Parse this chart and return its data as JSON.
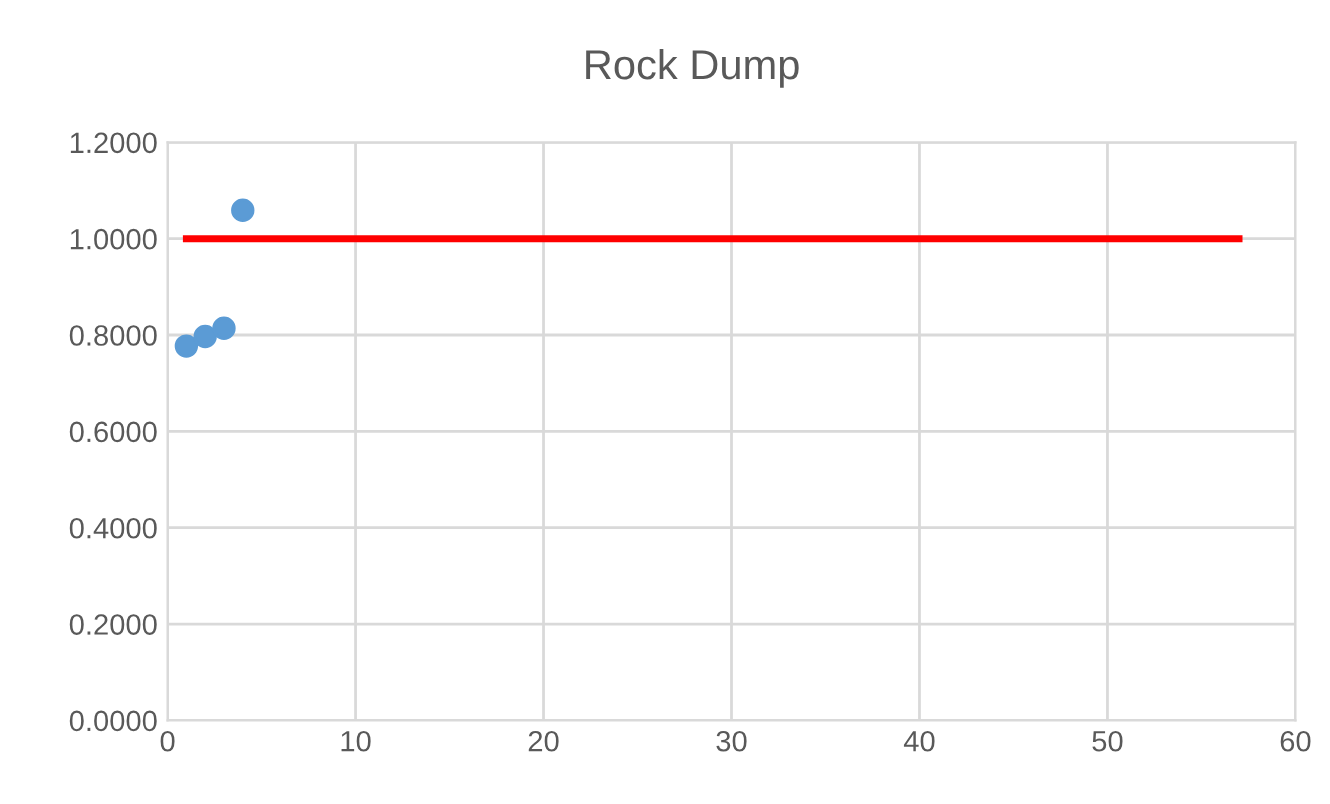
{
  "chart_data": {
    "type": "scatter",
    "title": "Rock Dump",
    "series": [
      {
        "color": "#5b9bd5",
        "marker": "circle",
        "x": [
          1,
          2,
          3,
          4
        ],
        "values": [
          0.777,
          0.797,
          0.814,
          1.059
        ]
      },
      {
        "type": "line",
        "color": "#ff0000",
        "marker": "none",
        "x": [
          1,
          57
        ],
        "values": [
          1.0,
          1.0
        ]
      }
    ],
    "xlim": [
      0,
      60
    ],
    "xticks": [
      0,
      10,
      20,
      30,
      40,
      50,
      60
    ],
    "ylim": [
      0,
      1.2
    ],
    "yticks": [
      {
        "value": 0,
        "label": "0.0000"
      },
      {
        "value": 0.2,
        "label": "0.2000"
      },
      {
        "value": 0.4,
        "label": "0.4000"
      },
      {
        "value": 0.6,
        "label": "0.6000"
      },
      {
        "value": 0.8,
        "label": "0.8000"
      },
      {
        "value": 1.0,
        "label": "1.0000"
      },
      {
        "value": 1.2,
        "label": "1.2000"
      }
    ],
    "grid": true
  }
}
